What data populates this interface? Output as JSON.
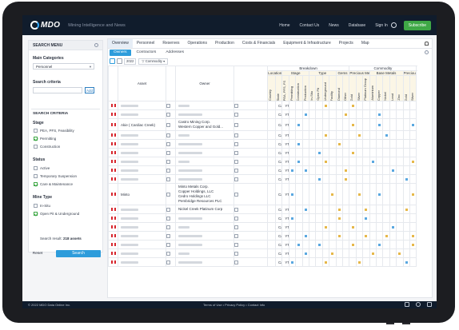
{
  "header": {
    "logo": "MDO",
    "tagline": "Mining Intelligence and News",
    "nav": [
      "Home",
      "Contact Us",
      "News",
      "Database",
      "Sign In"
    ],
    "subscribe": "Subscribe"
  },
  "sidebar": {
    "title": "SEARCH MENU",
    "main_categories_label": "Main Categories",
    "main_category_value": "Personnel",
    "search_criteria_label": "Search criteria",
    "add_label": "Add",
    "criteria_title": "SEARCH CRITERIA",
    "groups": [
      {
        "title": "Stage",
        "items": [
          {
            "label": "PEA, PFS, Feasibility",
            "checked": false
          },
          {
            "label": "Permitting",
            "checked": true
          },
          {
            "label": "Construction",
            "checked": false
          }
        ]
      },
      {
        "title": "Status",
        "items": [
          {
            "label": "Active",
            "checked": false
          },
          {
            "label": "Temporary Suspension",
            "checked": false
          },
          {
            "label": "Care & Maintenance",
            "checked": true
          }
        ]
      },
      {
        "title": "Mine Type",
        "items": [
          {
            "label": "In-Situ",
            "checked": false
          },
          {
            "label": "Open Pit & Underground",
            "checked": true
          }
        ]
      }
    ],
    "result_prefix": "Search result:",
    "result_count": "218 assets",
    "reset": "Reset",
    "search": "Search"
  },
  "main": {
    "tabs": [
      "Overview",
      "Personnel",
      "Reserves",
      "Operations",
      "Production",
      "Costs & Financials",
      "Equipment & Infrastructure",
      "Projects",
      "Map"
    ],
    "active_tab": 0,
    "subtabs": [
      "Owners",
      "Contractors",
      "Addresses"
    ],
    "active_subtab": 0,
    "year": "2022",
    "filter": "Commodity"
  },
  "table": {
    "asset_header": "Asset",
    "owner_header": "Owner",
    "breakdown_header": "Breakdown",
    "commodity_header": "Commodity",
    "location_header": "Location",
    "stage_header": "Stage",
    "type_header": "Type",
    "gems_header": "Gems",
    "precious_header": "Precious Metals",
    "base_header": "Base Metals",
    "precious2_header": "Precious Metals",
    "columns": [
      "Country",
      "State",
      "PEA, PFS, FS",
      "Permitting",
      "Construction",
      "Production",
      "In-Situ",
      "Open Pit",
      "Underground",
      "Facility",
      "Diamond",
      "Other",
      "Gold",
      "Silver",
      "Platinum Group",
      "Aluminium",
      "Copper",
      "Nickel",
      "Lead",
      "Zinc",
      "Gold",
      "Silver",
      "Platinum Group"
    ],
    "rows": [
      {
        "asset": "",
        "owner": "",
        "country": "Canada",
        "state": "YT",
        "marks": [
          null,
          "b",
          null,
          null,
          null,
          null,
          null,
          "y",
          null,
          null,
          null,
          "y",
          null,
          null,
          null,
          null,
          null,
          null,
          null,
          null,
          null,
          "b",
          null
        ]
      },
      {
        "asset": "",
        "owner": "",
        "country": "Canada",
        "state": "YT",
        "marks": [
          null,
          null,
          null,
          null,
          "b",
          null,
          null,
          null,
          null,
          null,
          "y",
          null,
          null,
          null,
          null,
          "b",
          null,
          null,
          null,
          null,
          null,
          "y",
          null
        ]
      },
      {
        "asset": "Akie ( Cardiac Creek)",
        "owner": "Castro Mining Corp.\nWestern Copper and Gold...",
        "country": "Canada",
        "state": "YT",
        "marks": [
          null,
          null,
          null,
          "b",
          null,
          null,
          null,
          null,
          null,
          null,
          null,
          "y",
          null,
          null,
          null,
          "b",
          null,
          null,
          null,
          null,
          "b",
          null,
          null
        ]
      },
      {
        "asset": "",
        "owner": "",
        "country": "Canada",
        "state": "YT",
        "marks": [
          null,
          "b",
          null,
          null,
          null,
          null,
          null,
          "y",
          null,
          null,
          null,
          null,
          "y",
          null,
          null,
          null,
          "b",
          null,
          null,
          null,
          null,
          null,
          null
        ]
      },
      {
        "asset": "",
        "owner": "",
        "country": "Canada",
        "state": "YT",
        "marks": [
          null,
          null,
          null,
          "b",
          null,
          null,
          null,
          null,
          null,
          "y",
          null,
          null,
          null,
          null,
          null,
          null,
          null,
          null,
          null,
          null,
          null,
          null,
          "y"
        ]
      },
      {
        "asset": "",
        "owner": "",
        "country": "Canada",
        "state": "YT",
        "marks": [
          null,
          "b",
          null,
          null,
          null,
          null,
          "b",
          null,
          null,
          null,
          null,
          "y",
          null,
          null,
          null,
          null,
          null,
          null,
          null,
          null,
          null,
          "y",
          null
        ]
      },
      {
        "asset": "",
        "owner": "",
        "country": "Canada",
        "state": "YT",
        "marks": [
          null,
          null,
          null,
          "b",
          null,
          null,
          null,
          "y",
          null,
          null,
          null,
          null,
          null,
          null,
          "b",
          null,
          null,
          null,
          null,
          null,
          "y",
          null,
          null
        ]
      },
      {
        "asset": "",
        "owner": "",
        "country": "Canada",
        "state": "YT",
        "marks": [
          null,
          null,
          "b",
          null,
          "b",
          null,
          null,
          null,
          null,
          null,
          "y",
          null,
          null,
          null,
          null,
          null,
          null,
          "b",
          null,
          null,
          null,
          null,
          "y"
        ]
      },
      {
        "asset": "",
        "owner": "",
        "country": "Canada",
        "state": "YT",
        "marks": [
          null,
          null,
          null,
          null,
          null,
          null,
          "b",
          null,
          null,
          null,
          "y",
          null,
          null,
          null,
          null,
          null,
          null,
          null,
          null,
          "b",
          null,
          null,
          "y"
        ]
      },
      {
        "asset": "Minto",
        "owner": "Minto Metals Corp.\nCopper Holdings, LLC\nCedro Holdings LLC\nPembridge Resources PLC",
        "country": "Canada",
        "state": "YT",
        "marks": [
          null,
          null,
          "b",
          null,
          null,
          null,
          null,
          null,
          "y",
          null,
          null,
          null,
          "y",
          null,
          null,
          "b",
          null,
          null,
          null,
          null,
          "y",
          null,
          null
        ]
      },
      {
        "asset": "",
        "owner": "Nickel Creek Platinum Corp",
        "country": "Canada",
        "state": "YT",
        "marks": [
          null,
          null,
          null,
          null,
          "b",
          null,
          null,
          null,
          null,
          "y",
          null,
          null,
          null,
          "y",
          null,
          null,
          null,
          null,
          null,
          "y",
          null,
          null,
          null
        ]
      },
      {
        "asset": "",
        "owner": "",
        "country": "Canada",
        "state": "YT",
        "marks": [
          null,
          null,
          "b",
          null,
          null,
          null,
          null,
          null,
          null,
          "y",
          null,
          null,
          null,
          "b",
          null,
          null,
          null,
          null,
          null,
          null,
          null,
          "y",
          null
        ]
      },
      {
        "asset": "",
        "owner": "",
        "country": "Canada",
        "state": "YT",
        "marks": [
          null,
          "b",
          null,
          null,
          null,
          null,
          null,
          "y",
          null,
          null,
          null,
          "y",
          null,
          null,
          null,
          null,
          null,
          "b",
          null,
          null,
          null,
          null,
          null
        ]
      },
      {
        "asset": "",
        "owner": "",
        "country": "Canada",
        "state": "YT",
        "marks": [
          null,
          null,
          null,
          null,
          "b",
          null,
          null,
          null,
          null,
          "y",
          null,
          null,
          null,
          "y",
          null,
          null,
          "y",
          null,
          null,
          null,
          "y",
          null,
          null
        ]
      },
      {
        "asset": "",
        "owner": "",
        "country": "Canada",
        "state": "YT",
        "marks": [
          null,
          null,
          null,
          "b",
          null,
          null,
          "b",
          null,
          null,
          null,
          null,
          "y",
          null,
          null,
          null,
          "b",
          null,
          null,
          null,
          null,
          "y",
          null,
          null
        ]
      },
      {
        "asset": "",
        "owner": "",
        "country": "Canada",
        "state": "YT",
        "marks": [
          null,
          null,
          null,
          null,
          "b",
          null,
          null,
          null,
          "y",
          null,
          null,
          null,
          null,
          null,
          "y",
          null,
          null,
          null,
          "y",
          null,
          null,
          null,
          "b"
        ]
      },
      {
        "asset": "",
        "owner": "",
        "country": "Canada",
        "state": "YT",
        "marks": [
          null,
          null,
          "b",
          null,
          null,
          null,
          null,
          "y",
          null,
          null,
          null,
          null,
          "y",
          null,
          null,
          null,
          null,
          null,
          null,
          "b",
          null,
          null,
          null
        ]
      }
    ]
  },
  "footer": {
    "copyright": "© 2022 MDO Data Online Inc.",
    "links": "Terms of Use • Privacy Policy • Contact Info"
  },
  "colors": {
    "stage": "#5aa8e0",
    "commodity": "#e6b84a",
    "accent": "#2d9cdb",
    "subscribe": "#3fa846"
  }
}
